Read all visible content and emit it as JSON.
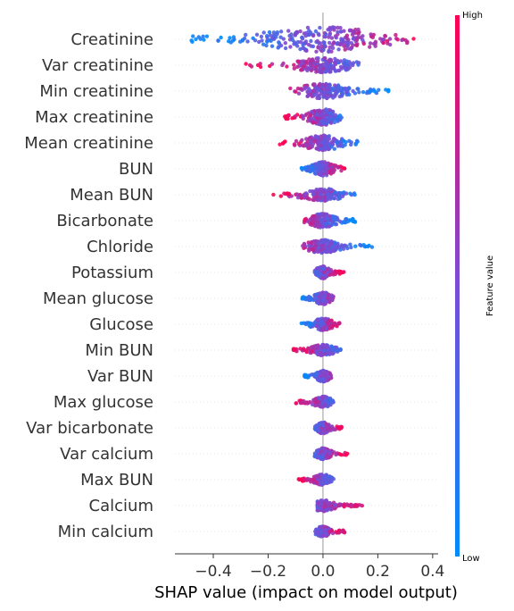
{
  "chart_data": {
    "type": "scatter",
    "subtype": "shap-beeswarm",
    "xlabel": "SHAP value (impact on model output)",
    "xlim": [
      -0.54,
      0.42
    ],
    "xticks": [
      -0.4,
      -0.2,
      0.0,
      0.2,
      0.4
    ],
    "xtick_labels": [
      "−0.4",
      "−0.2",
      "0.0",
      "0.2",
      "0.4"
    ],
    "zero_line": true,
    "colorbar": {
      "label": "Feature value",
      "high_label": "High",
      "low_label": "Low",
      "low_color": "#008bfb",
      "high_color": "#ff0052"
    },
    "features": [
      {
        "name": "Creatinine",
        "min": -0.49,
        "max": 0.38,
        "width": 1.0,
        "high_side": "right"
      },
      {
        "name": "Var creatinine",
        "min": -0.3,
        "max": 0.15,
        "width": 0.45,
        "high_side": "left"
      },
      {
        "name": "Min creatinine",
        "min": -0.12,
        "max": 0.24,
        "width": 0.5,
        "high_side": "left"
      },
      {
        "name": "Max creatinine",
        "min": -0.14,
        "max": 0.07,
        "width": 0.55,
        "high_side": "left"
      },
      {
        "name": "Mean creatinine",
        "min": -0.16,
        "max": 0.13,
        "width": 0.5,
        "high_side": "left"
      },
      {
        "name": "BUN",
        "min": -0.08,
        "max": 0.08,
        "width": 0.45,
        "high_side": "right"
      },
      {
        "name": "Mean BUN",
        "min": -0.19,
        "max": 0.13,
        "width": 0.35,
        "high_side": "left"
      },
      {
        "name": "Bicarbonate",
        "min": -0.07,
        "max": 0.12,
        "width": 0.45,
        "high_side": "left"
      },
      {
        "name": "Chloride",
        "min": -0.08,
        "max": 0.18,
        "width": 0.4,
        "high_side": "left"
      },
      {
        "name": "Potassium",
        "min": -0.03,
        "max": 0.08,
        "width": 0.35,
        "high_side": "right"
      },
      {
        "name": "Mean glucose",
        "min": -0.08,
        "max": 0.04,
        "width": 0.35,
        "high_side": "right"
      },
      {
        "name": "Glucose",
        "min": -0.08,
        "max": 0.07,
        "width": 0.35,
        "high_side": "right"
      },
      {
        "name": "Min BUN",
        "min": -0.11,
        "max": 0.07,
        "width": 0.3,
        "high_side": "left"
      },
      {
        "name": "Var BUN",
        "min": -0.07,
        "max": 0.03,
        "width": 0.3,
        "high_side": "right"
      },
      {
        "name": "Max glucose",
        "min": -0.1,
        "max": 0.04,
        "width": 0.3,
        "high_side": "left"
      },
      {
        "name": "Var bicarbonate",
        "min": -0.03,
        "max": 0.07,
        "width": 0.3,
        "high_side": "right"
      },
      {
        "name": "Var calcium",
        "min": -0.03,
        "max": 0.09,
        "width": 0.3,
        "high_side": "right"
      },
      {
        "name": "Max BUN",
        "min": -0.09,
        "max": 0.04,
        "width": 0.3,
        "high_side": "left"
      },
      {
        "name": "Calcium",
        "min": -0.02,
        "max": 0.15,
        "width": 0.3,
        "high_side": "right"
      },
      {
        "name": "Min calcium",
        "min": -0.03,
        "max": 0.08,
        "width": 0.25,
        "high_side": "right"
      }
    ]
  }
}
